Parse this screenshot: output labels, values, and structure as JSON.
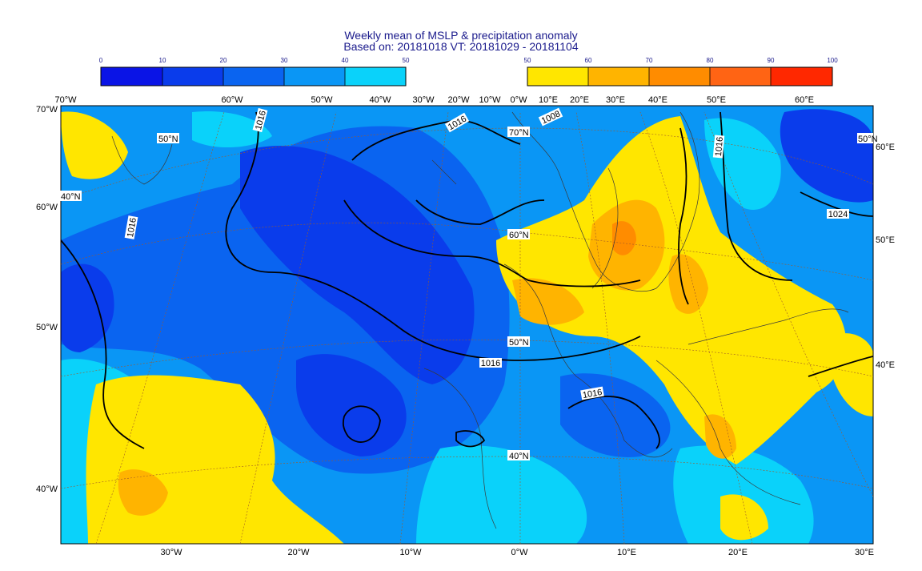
{
  "title": {
    "line1": "Weekly mean of MSLP & precipitation anomaly",
    "line2": "Based on: 20181018 VT: 20181029 - 20181104"
  },
  "legend": {
    "cool": {
      "ticks": [
        "0",
        "10",
        "20",
        "30",
        "40",
        "50"
      ],
      "colors": [
        "#0a14e6",
        "#0a3ceb",
        "#0a64f0",
        "#0a96f5",
        "#0ad2fa"
      ]
    },
    "warm": {
      "ticks": [
        "50",
        "60",
        "70",
        "80",
        "90",
        "100"
      ],
      "colors": [
        "#ffe600",
        "#ffb400",
        "#ff8c00",
        "#ff6414",
        "#ff2800"
      ]
    }
  },
  "map": {
    "field_colors": {
      "blue_dark": "#0a3ceb",
      "blue_mid": "#0a64f0",
      "blue_light": "#0a96f5",
      "cyan": "#0ad2fa",
      "yellow": "#ffe600",
      "orange": "#ffb400",
      "dark_orange": "#ff8c00"
    },
    "top_labels": [
      "70°W",
      "60°W",
      "50°W",
      "40°W",
      "30°W",
      "20°W",
      "10°W",
      "0°W",
      "10°E",
      "20°E",
      "30°E",
      "40°E",
      "50°E",
      "60°E"
    ],
    "bottom_labels": [
      "30°W",
      "20°W",
      "10°W",
      "0°W",
      "10°E",
      "20°E",
      "30°E"
    ],
    "left_labels": [
      "70°W",
      "60°W",
      "50°W",
      "40°W"
    ],
    "right_labels": [
      "60°E",
      "50°E",
      "40°E"
    ],
    "inner_lat_labels": [
      "50°N",
      "40°N",
      "70°N",
      "60°N",
      "50°N",
      "40°N",
      "50°N"
    ],
    "isobar_labels": [
      "1016",
      "1016",
      "1008",
      "1016",
      "1016",
      "1016",
      "1016",
      "1024"
    ]
  }
}
